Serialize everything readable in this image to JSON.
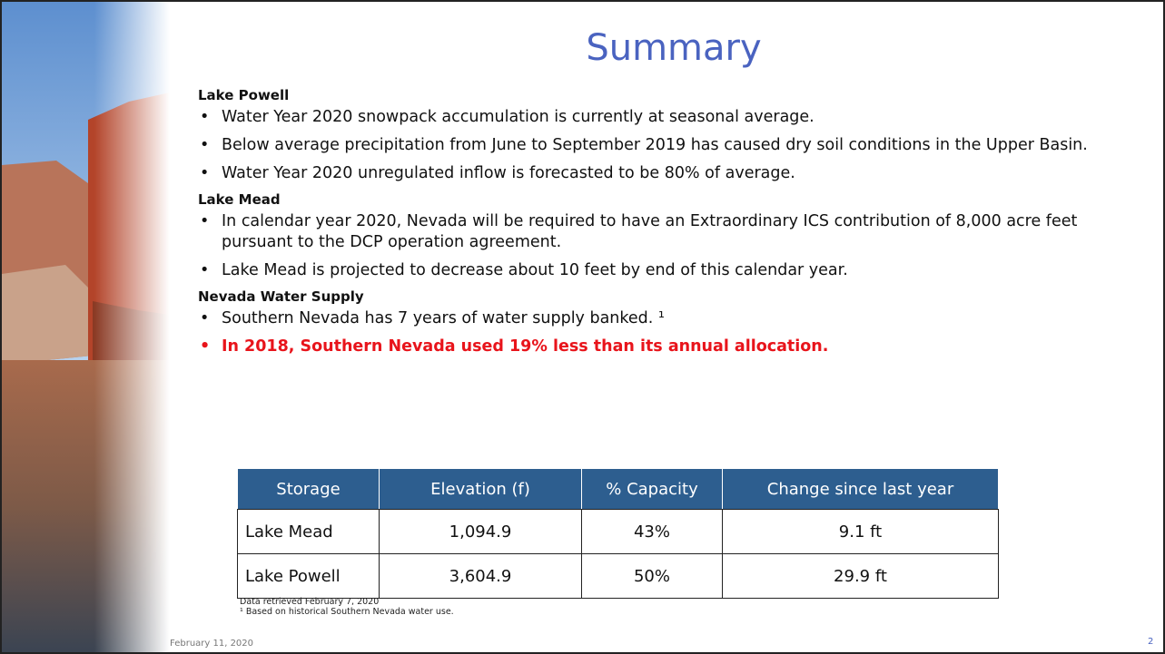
{
  "title": "Summary",
  "sections": [
    {
      "heading": "Lake Powell",
      "bullets": [
        "Water Year 2020 snowpack accumulation is currently at seasonal average.",
        "Below average precipitation from June to September 2019 has caused dry soil conditions in the Upper Basin.",
        "Water Year 2020 unregulated inflow is forecasted to be 80% of average."
      ]
    },
    {
      "heading": "Lake Mead",
      "bullets": [
        "In calendar year 2020, Nevada will be required to have an Extraordinary ICS contribution of 8,000 acre feet pursuant to the DCP operation agreement.",
        "Lake Mead is projected to decrease about 10 feet by end of this calendar year."
      ]
    },
    {
      "heading": "Nevada Water Supply",
      "bullets": [
        "Southern Nevada has 7 years of water supply banked. ¹",
        "In 2018, Southern Nevada used 19% less than its annual allocation."
      ]
    }
  ],
  "table": {
    "header": [
      "Storage",
      "Elevation (f)",
      "% Capacity",
      "Change since last year"
    ],
    "rows": [
      [
        "Lake Mead",
        "1,094.9",
        "43%",
        "9.1 ft"
      ],
      [
        "Lake Powell",
        "3,604.9",
        "50%",
        "29.9 ft"
      ]
    ]
  },
  "notes": [
    "Data retrieved February 7, 2020",
    "¹ Based on historical Southern Nevada water use."
  ],
  "footer": {
    "date": "February 11, 2020",
    "page": "2"
  }
}
